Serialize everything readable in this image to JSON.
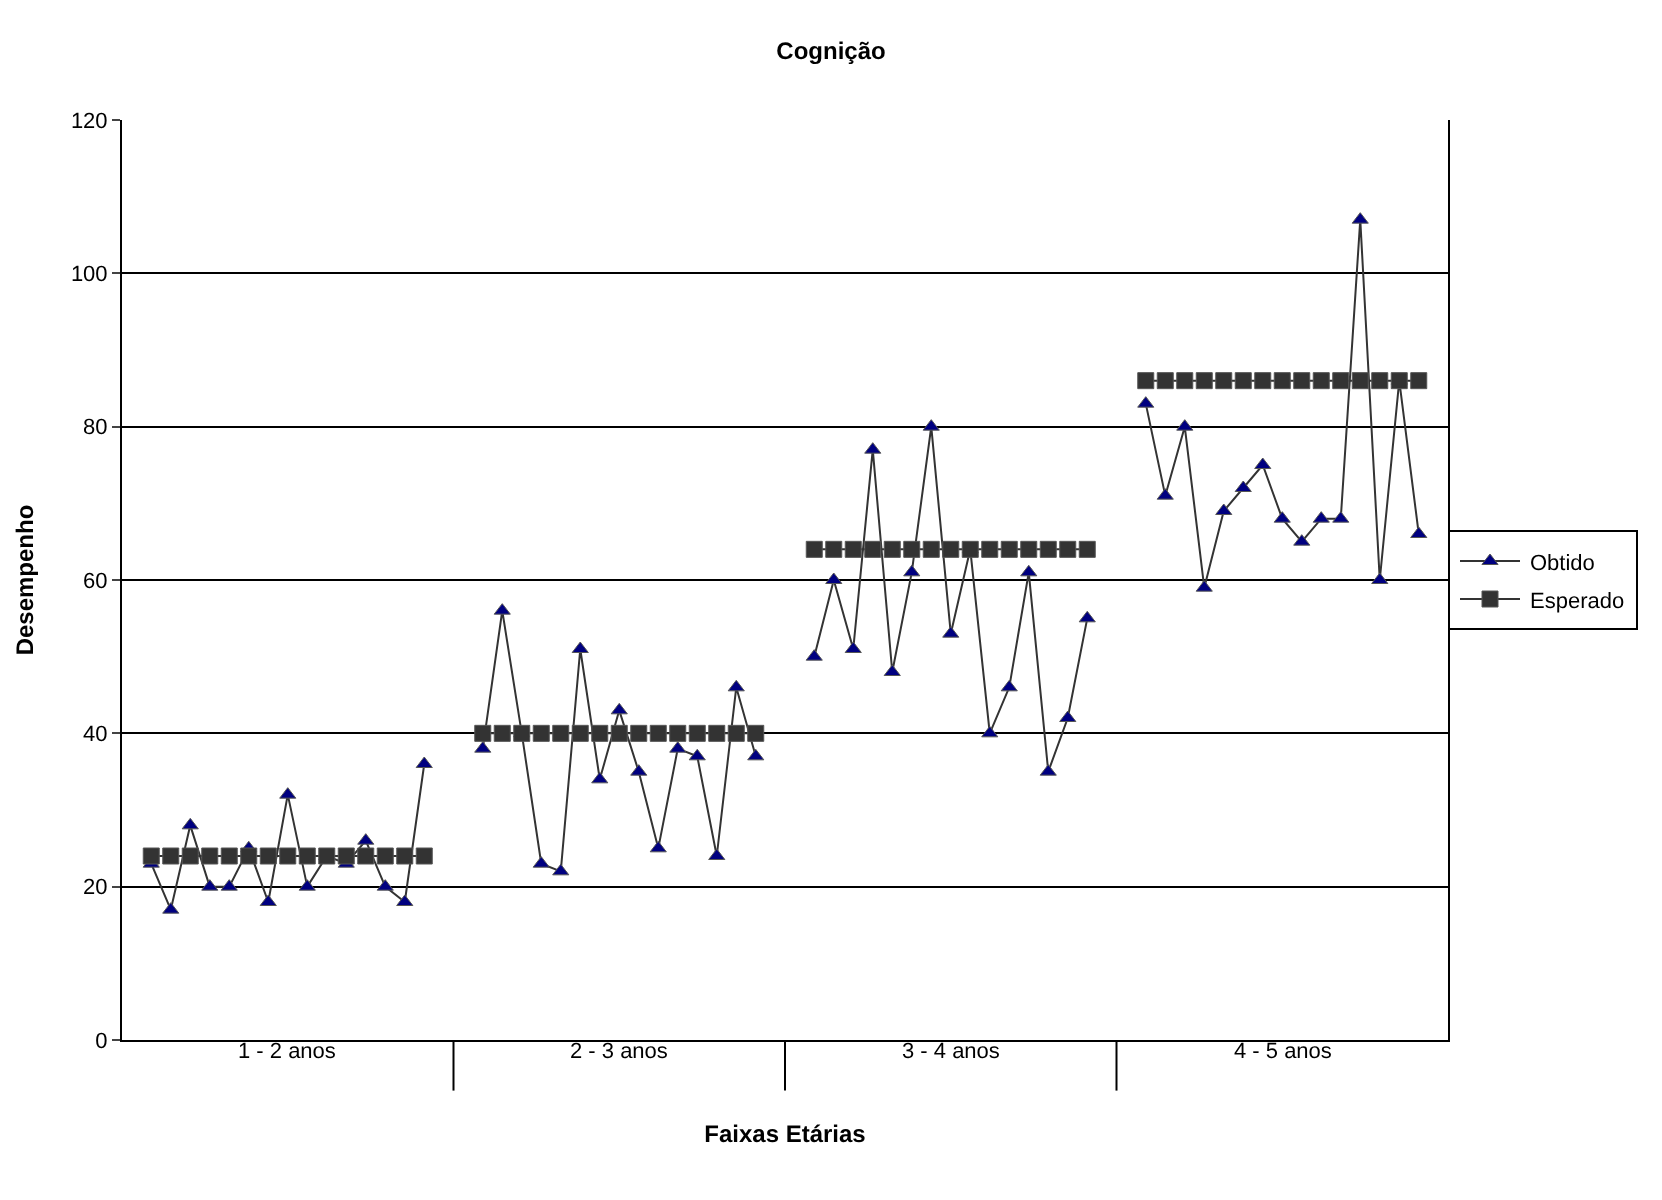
{
  "chart_data": {
    "type": "line",
    "title": "Cognição",
    "xlabel": "Faixas Etárias",
    "ylabel": "Desempenho",
    "categories": [
      null,
      null,
      null,
      null,
      null,
      null,
      null,
      null,
      null,
      null,
      null,
      null,
      null,
      null,
      null,
      null,
      null,
      null,
      null,
      null,
      null,
      null,
      null,
      null,
      null,
      null,
      null,
      null,
      null,
      null,
      null,
      null,
      null,
      null,
      null,
      null,
      null,
      null,
      null,
      null,
      null,
      null,
      null,
      null,
      null,
      null,
      null,
      null,
      null,
      null,
      null,
      null,
      null,
      null,
      null,
      null,
      null,
      null,
      null,
      null,
      null,
      null,
      null,
      null,
      null,
      null,
      null,
      null
    ],
    "annotations": [
      "1 - 2 anos",
      "2 - 3 anos",
      "3 - 4 anos",
      "4 - 5 anos"
    ],
    "ylim": [
      0,
      120
    ],
    "yticks": [
      0,
      20,
      40,
      60,
      80,
      100,
      120
    ],
    "grid": "y",
    "legend": "right",
    "series": [
      {
        "name": "Obtido",
        "color": "#000080",
        "marker": "triangle",
        "values": [
          null,
          23,
          17,
          28,
          20,
          20,
          25,
          18,
          32,
          20,
          24,
          23,
          26,
          20,
          18,
          36,
          null,
          null,
          38,
          56,
          40,
          23,
          22,
          51,
          34,
          43,
          35,
          25,
          38,
          37,
          24,
          46,
          37,
          null,
          null,
          50,
          60,
          51,
          77,
          48,
          61,
          80,
          53,
          64,
          40,
          46,
          61,
          35,
          42,
          55,
          null,
          null,
          83,
          71,
          80,
          59,
          69,
          72,
          75,
          68,
          65,
          68,
          68,
          107,
          60,
          86,
          66,
          null
        ]
      },
      {
        "name": "Esperado",
        "color": "#333333",
        "marker": "square",
        "values": [
          null,
          24,
          24,
          24,
          24,
          24,
          24,
          24,
          24,
          24,
          24,
          24,
          24,
          24,
          24,
          24,
          null,
          null,
          40,
          40,
          40,
          40,
          40,
          40,
          40,
          40,
          40,
          40,
          40,
          40,
          40,
          40,
          40,
          null,
          null,
          64,
          64,
          64,
          64,
          64,
          64,
          64,
          64,
          64,
          64,
          64,
          64,
          64,
          64,
          64,
          null,
          null,
          86,
          86,
          86,
          86,
          86,
          86,
          86,
          86,
          86,
          86,
          86,
          86,
          86,
          86,
          86,
          null
        ]
      }
    ]
  }
}
